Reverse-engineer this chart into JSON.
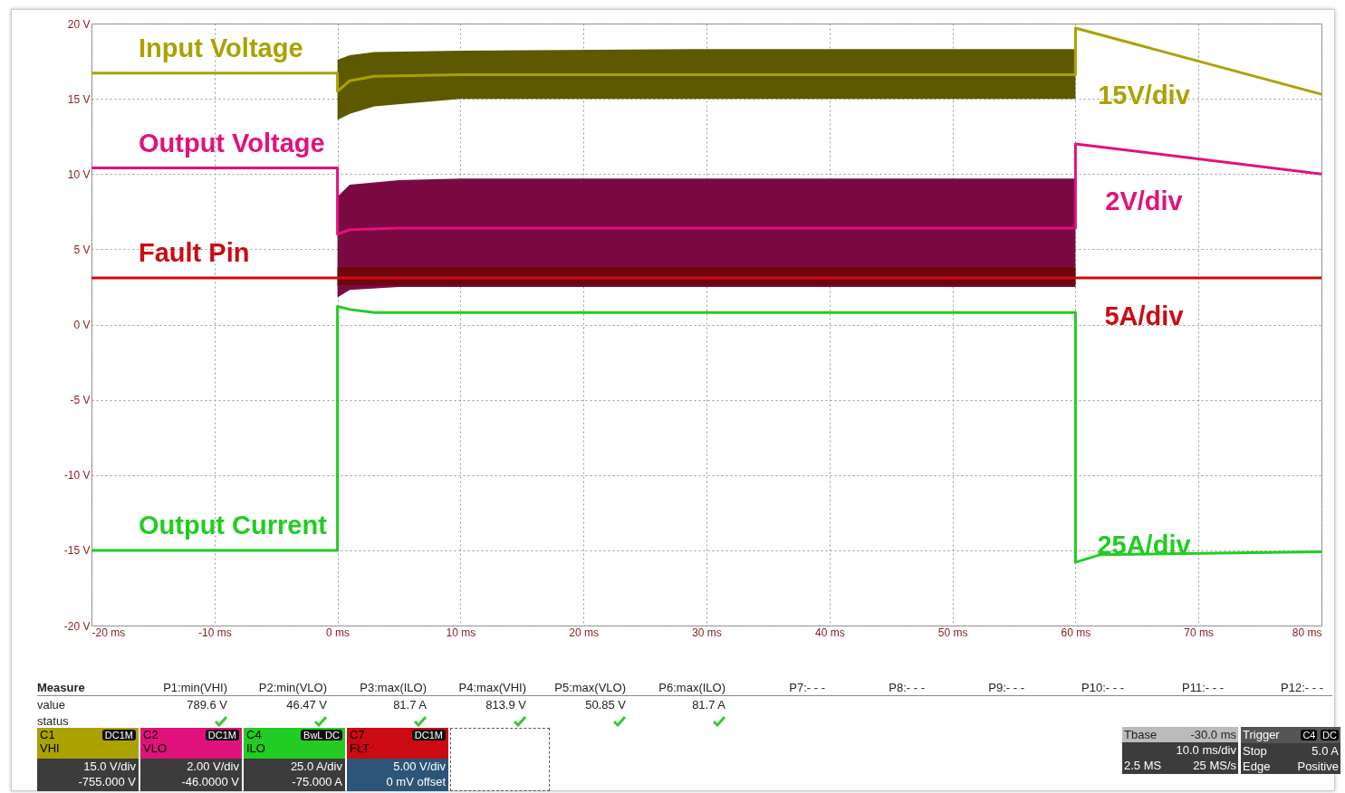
{
  "chart_data": {
    "type": "line",
    "xlim": [
      -20,
      80
    ],
    "ylim": [
      -20,
      20
    ],
    "xticks": [
      {
        "value": -20,
        "label": "-20 ms"
      },
      {
        "value": -10,
        "label": "-10 ms"
      },
      {
        "value": 0,
        "label": "0 ms"
      },
      {
        "value": 10,
        "label": "10 ms"
      },
      {
        "value": 20,
        "label": "20 ms"
      },
      {
        "value": 30,
        "label": "30 ms"
      },
      {
        "value": 40,
        "label": "40 ms"
      },
      {
        "value": 50,
        "label": "50 ms"
      },
      {
        "value": 60,
        "label": "60 ms"
      },
      {
        "value": 70,
        "label": "70 ms"
      },
      {
        "value": 80,
        "label": "80 ms"
      }
    ],
    "yticks": [
      {
        "value": -20,
        "label": "-20 V"
      },
      {
        "value": -15,
        "label": "-15 V"
      },
      {
        "value": -10,
        "label": "-10 V"
      },
      {
        "value": -5,
        "label": "-5 V"
      },
      {
        "value": 0,
        "label": "0 V"
      },
      {
        "value": 5,
        "label": "5 V"
      },
      {
        "value": 10,
        "label": "10 V"
      },
      {
        "value": 15,
        "label": "15 V"
      },
      {
        "value": 20,
        "label": "20 V"
      }
    ],
    "grid": true,
    "marker": "none",
    "line_style": "solid",
    "series": [
      {
        "name": "Input Voltage",
        "color": "#aaa200",
        "x": [
          -20,
          0,
          0,
          1,
          3,
          10,
          30,
          60,
          60,
          65,
          80
        ],
        "values": [
          16.7,
          16.7,
          15.5,
          16.2,
          16.5,
          16.6,
          16.6,
          16.6,
          19.7,
          18.6,
          15.3
        ],
        "lower": [
          null,
          null,
          13.6,
          14.0,
          14.5,
          15.0,
          15.0,
          15.0,
          null,
          null,
          null
        ],
        "upper": [
          null,
          null,
          17.6,
          17.9,
          18.1,
          18.2,
          18.3,
          18.3,
          null,
          null,
          null
        ]
      },
      {
        "name": "Output Voltage",
        "color": "#e0127c",
        "x": [
          -20,
          0,
          0,
          1,
          5,
          10,
          30,
          60,
          60,
          80
        ],
        "values": [
          10.4,
          10.4,
          6.0,
          6.3,
          6.4,
          6.4,
          6.4,
          6.4,
          12.0,
          10.0
        ],
        "lower": [
          null,
          null,
          1.8,
          2.3,
          2.5,
          2.5,
          2.5,
          2.5,
          null,
          null
        ],
        "upper": [
          null,
          null,
          8.5,
          9.3,
          9.6,
          9.7,
          9.7,
          9.7,
          null,
          null
        ]
      },
      {
        "name": "Fault Pin",
        "color": "#cc0a14",
        "x": [
          -20,
          0,
          0,
          60,
          60,
          80
        ],
        "values": [
          3.1,
          3.1,
          3.1,
          3.1,
          3.1,
          3.1
        ],
        "lower": [
          null,
          null,
          2.6,
          2.6,
          null,
          null
        ],
        "upper": [
          null,
          null,
          3.8,
          3.8,
          null,
          null
        ]
      },
      {
        "name": "Output Current",
        "color": "#22cc22",
        "x": [
          -20,
          0,
          0,
          1,
          3,
          10,
          60,
          60,
          62,
          80
        ],
        "values": [
          -15.0,
          -15.0,
          1.2,
          1.0,
          0.8,
          0.8,
          0.8,
          -15.8,
          -15.3,
          -15.1
        ]
      }
    ],
    "annotations": [
      "15V/div",
      "2V/div",
      "5A/div",
      "25A/div",
      "Measure",
      "P1:min(VHI)",
      "P2:min(VLO)",
      "P3:max(ILO)",
      "P4:max(VHI)",
      "P5:max(VLO)",
      "P6:max(ILO)",
      "P7:- - -",
      "P8:- - -",
      "P9:- - -",
      "P10:- - -",
      "P11:- - -",
      "P12:- - -",
      "value",
      "789.6 V",
      "46.47 V",
      "81.7 A",
      "813.9 V",
      "50.85 V",
      "81.7 A",
      "status",
      "C1",
      "DC1M",
      "VHI",
      "15.0 V/div",
      "-755.000 V",
      "C2",
      "DC1M",
      "VLO",
      "2.00 V/div",
      "-46.0000 V",
      "C4",
      "BwL DC",
      "ILO",
      "25.0 A/div",
      "-75.000 A",
      "C7",
      "DC1M",
      "FLT",
      "5.00 V/div",
      "0 mV offset",
      "Tbase",
      "-30.0 ms",
      "10.0 ms/div",
      "2.5 MS",
      "25 MS/s",
      "Trigger",
      "C4",
      "DC",
      "Stop",
      "5.0 A",
      "Edge",
      "Positive"
    ]
  }
}
